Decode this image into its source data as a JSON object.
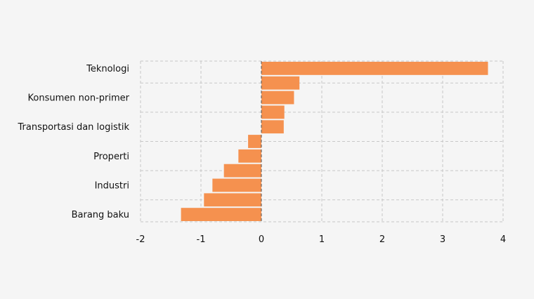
{
  "chart_data": {
    "type": "bar",
    "orientation": "horizontal",
    "categories": [
      "Teknologi",
      "",
      "Konsumen non-primer",
      "",
      "Transportasi dan logistik",
      "",
      "Properti",
      "",
      "Industri",
      "",
      "Barang baku"
    ],
    "values": [
      3.75,
      0.63,
      0.54,
      0.38,
      0.37,
      -0.22,
      -0.38,
      -0.62,
      -0.81,
      -0.95,
      -1.33
    ],
    "xlim": [
      -2,
      4
    ],
    "xticks": [
      -2,
      -1,
      0,
      1,
      2,
      3,
      4
    ],
    "xtick_labels": [
      "-2",
      "-1",
      "0",
      "1",
      "2",
      "3",
      "4"
    ],
    "bar_color": "#f5914f",
    "grid": true,
    "legend": "none"
  }
}
